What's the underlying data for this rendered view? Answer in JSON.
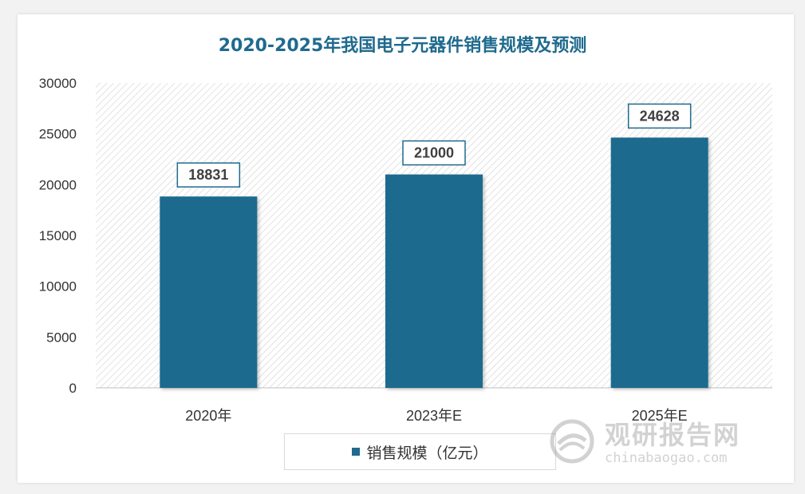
{
  "colors": {
    "bar": "#1f6a8e",
    "title": "#1f6a8e",
    "axis_text": "#333333",
    "hatch": "#d0d0d0"
  },
  "legend": {
    "label": "销售规模（亿元）"
  },
  "watermark": {
    "logo_icon": "swirl-logo-icon",
    "brand_cn": "观研报告网",
    "brand_url": "chinabaogao.com"
  },
  "chart_data": {
    "type": "bar",
    "title": "2020-2025年我国电子元器件销售规模及预测",
    "categories": [
      "2020年",
      "2023年E",
      "2025年E"
    ],
    "series": [
      {
        "name": "销售规模（亿元）",
        "values": [
          18831,
          21000,
          24628
        ]
      }
    ],
    "data_labels": [
      "18831",
      "21000",
      "24628"
    ],
    "y_ticks": [
      "0",
      "5000",
      "10000",
      "15000",
      "20000",
      "25000",
      "30000"
    ],
    "ylim": [
      0,
      30000
    ],
    "xlabel": "",
    "ylabel": "",
    "grid": false,
    "plot_background": "diagonal hatch",
    "legend_position": "bottom"
  }
}
